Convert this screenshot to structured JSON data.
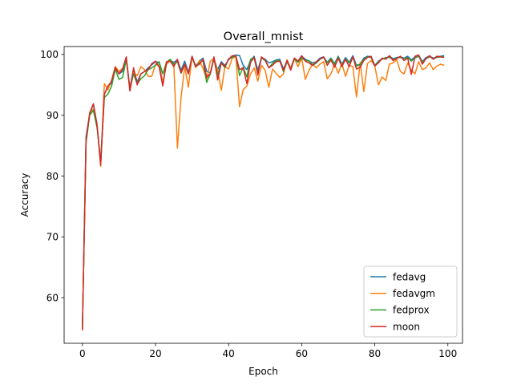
{
  "chart_data": {
    "type": "line",
    "title": "Overall_mnist",
    "xlabel": "Epoch",
    "ylabel": "Accuracy",
    "xlim": [
      -5,
      104
    ],
    "ylim": [
      52.5,
      101.3
    ],
    "xticks": [
      0,
      20,
      40,
      60,
      80,
      100
    ],
    "yticks": [
      60,
      70,
      80,
      90,
      100
    ],
    "grid": false,
    "legend_position": "lower-right",
    "x": [
      0,
      1,
      2,
      3,
      4,
      5,
      6,
      7,
      8,
      9,
      10,
      11,
      12,
      13,
      14,
      15,
      16,
      17,
      18,
      19,
      20,
      21,
      22,
      23,
      24,
      25,
      26,
      27,
      28,
      29,
      30,
      31,
      32,
      33,
      34,
      35,
      36,
      37,
      38,
      39,
      40,
      41,
      42,
      43,
      44,
      45,
      46,
      47,
      48,
      49,
      50,
      51,
      52,
      53,
      54,
      55,
      56,
      57,
      58,
      59,
      60,
      61,
      62,
      63,
      64,
      65,
      66,
      67,
      68,
      69,
      70,
      71,
      72,
      73,
      74,
      75,
      76,
      77,
      78,
      79,
      80,
      81,
      82,
      83,
      84,
      85,
      86,
      87,
      88,
      89,
      90,
      91,
      92,
      93,
      94,
      95,
      96,
      97,
      98,
      99
    ],
    "series": [
      {
        "name": "fedavg",
        "color": "#1f77b4",
        "values": [
          54.8,
          86.5,
          90.2,
          91.8,
          88.5,
          82.0,
          93.5,
          94.8,
          95.2,
          97.8,
          96.8,
          97.2,
          99.4,
          94.5,
          97.5,
          95.5,
          96.8,
          97.2,
          97.8,
          98.3,
          98.8,
          98.7,
          95.2,
          98.4,
          99.0,
          98.7,
          99.1,
          97.4,
          98.9,
          97.0,
          99.6,
          98.1,
          98.9,
          99.4,
          97.2,
          97.0,
          99.3,
          97.5,
          98.8,
          98.2,
          99.1,
          99.7,
          99.9,
          99.8,
          98.2,
          97.5,
          99.0,
          99.7,
          97.4,
          99.5,
          99.2,
          98.6,
          98.8,
          99.1,
          99.2,
          97.6,
          98.9,
          97.8,
          99.4,
          98.8,
          99.7,
          99.2,
          98.9,
          98.6,
          98.8,
          99.4,
          99.6,
          98.7,
          99.4,
          98.5,
          99.7,
          98.4,
          99.5,
          98.7,
          99.8,
          98.2,
          98.4,
          99.4,
          99.7,
          99.6,
          98.2,
          98.9,
          99.3,
          99.4,
          99.7,
          99.3,
          99.5,
          99.6,
          99.4,
          99.7,
          99.1,
          99.6,
          99.9,
          98.8,
          99.5,
          99.7,
          99.4,
          99.6,
          99.7,
          99.8
        ]
      },
      {
        "name": "fedavgm",
        "color": "#ff7f0e",
        "values": [
          54.6,
          85.8,
          90.3,
          91.0,
          88.6,
          81.6,
          95.2,
          94.2,
          95.8,
          98.0,
          97.2,
          97.7,
          99.4,
          94.0,
          97.0,
          96.5,
          98.0,
          97.5,
          96.4,
          96.4,
          98.4,
          98.2,
          95.4,
          98.3,
          99.0,
          98.4,
          84.6,
          93.0,
          98.0,
          94.6,
          99.6,
          97.8,
          99.0,
          97.7,
          95.9,
          98.9,
          99.3,
          97.4,
          94.1,
          98.0,
          97.6,
          99.4,
          99.6,
          91.4,
          94.2,
          94.8,
          96.8,
          97.8,
          95.6,
          98.2,
          97.4,
          94.6,
          97.6,
          96.9,
          96.2,
          96.8,
          99.1,
          97.7,
          99.3,
          98.0,
          99.4,
          95.9,
          97.4,
          98.4,
          97.8,
          98.4,
          98.8,
          96.0,
          96.8,
          98.4,
          96.9,
          98.5,
          96.4,
          98.2,
          98.0,
          93.0,
          98.7,
          93.9,
          98.5,
          99.0,
          98.1,
          95.0,
          96.3,
          95.7,
          98.4,
          98.6,
          99.1,
          97.2,
          96.8,
          98.6,
          97.4,
          96.8,
          98.8,
          97.5,
          97.8,
          98.6,
          97.5,
          98.1,
          98.4,
          98.2
        ]
      },
      {
        "name": "fedprox",
        "color": "#2ca02c",
        "values": [
          54.9,
          85.5,
          90.0,
          90.8,
          88.0,
          82.5,
          92.9,
          93.5,
          94.8,
          97.6,
          95.9,
          96.2,
          99.2,
          94.4,
          96.8,
          95.1,
          96.0,
          96.5,
          97.5,
          97.8,
          98.2,
          98.8,
          96.8,
          98.7,
          99.2,
          98.4,
          98.8,
          96.9,
          98.4,
          96.8,
          99.5,
          98.0,
          98.6,
          99.0,
          95.4,
          96.8,
          99.3,
          96.6,
          98.6,
          97.8,
          99.3,
          99.5,
          99.8,
          96.5,
          97.9,
          96.3,
          99.2,
          99.5,
          96.9,
          99.4,
          99.0,
          97.8,
          98.5,
          99.0,
          99.0,
          97.2,
          98.8,
          97.5,
          99.3,
          98.7,
          99.4,
          99.0,
          99.0,
          98.2,
          98.6,
          99.2,
          99.5,
          98.6,
          99.3,
          98.4,
          99.6,
          98.0,
          99.3,
          98.6,
          99.5,
          98.1,
          98.3,
          99.2,
          99.6,
          99.5,
          98.1,
          98.8,
          99.2,
          99.5,
          99.5,
          99.2,
          99.4,
          99.5,
          99.3,
          99.5,
          98.9,
          99.4,
          99.7,
          98.7,
          99.3,
          99.6,
          99.3,
          99.5,
          99.6,
          99.6
        ]
      },
      {
        "name": "moon",
        "color": "#d62728",
        "values": [
          54.7,
          86.0,
          90.4,
          91.9,
          88.4,
          81.8,
          93.4,
          94.8,
          95.6,
          97.9,
          96.8,
          97.6,
          99.6,
          94.0,
          97.8,
          95.0,
          96.8,
          97.2,
          97.5,
          98.5,
          98.9,
          97.9,
          94.8,
          98.8,
          98.9,
          98.0,
          99.2,
          97.0,
          98.4,
          96.8,
          99.7,
          98.0,
          98.4,
          99.2,
          96.2,
          96.9,
          99.6,
          95.8,
          98.6,
          98.0,
          99.2,
          99.8,
          99.7,
          97.5,
          97.8,
          95.2,
          98.7,
          99.5,
          96.6,
          99.6,
          99.1,
          97.8,
          98.2,
          98.8,
          98.9,
          97.4,
          99.0,
          97.4,
          99.4,
          98.9,
          99.8,
          98.9,
          98.6,
          98.2,
          98.8,
          99.2,
          99.6,
          98.2,
          99.1,
          97.9,
          99.4,
          98.0,
          99.2,
          98.0,
          99.6,
          97.6,
          97.9,
          99.0,
          99.5,
          99.7,
          98.1,
          98.6,
          99.4,
          99.2,
          99.8,
          99.0,
          99.3,
          99.7,
          99.0,
          99.4,
          96.7,
          99.7,
          99.9,
          98.4,
          99.3,
          99.8,
          99.2,
          99.7,
          99.6,
          99.5
        ]
      }
    ]
  }
}
